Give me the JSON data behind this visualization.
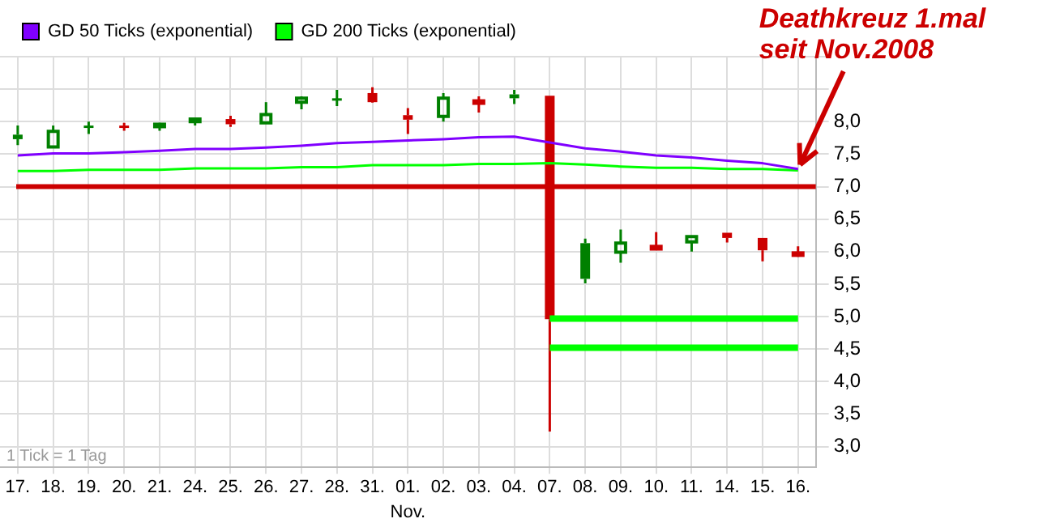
{
  "chart_data": {
    "type": "candlestick",
    "xlabel": "Nov.",
    "categories": [
      "17.",
      "18.",
      "19.",
      "20.",
      "21.",
      "24.",
      "25.",
      "26.",
      "27.",
      "28.",
      "31.",
      "01.",
      "02.",
      "03.",
      "04.",
      "07.",
      "08.",
      "09.",
      "10.",
      "11.",
      "14.",
      "15.",
      "16."
    ],
    "ohlc": [
      [
        7.8,
        7.94,
        7.64,
        7.73
      ],
      [
        7.61,
        7.94,
        7.61,
        7.85
      ],
      [
        7.94,
        8.0,
        7.81,
        7.94
      ],
      [
        7.94,
        7.98,
        7.86,
        7.94
      ],
      [
        7.94,
        7.98,
        7.86,
        7.96
      ],
      [
        8.0,
        8.05,
        7.94,
        8.04
      ],
      [
        8.04,
        8.09,
        7.92,
        7.96
      ],
      [
        7.98,
        8.3,
        7.98,
        8.11
      ],
      [
        8.3,
        8.39,
        8.19,
        8.36
      ],
      [
        8.36,
        8.49,
        8.24,
        8.36
      ],
      [
        8.44,
        8.53,
        8.29,
        8.3
      ],
      [
        8.1,
        8.21,
        7.81,
        8.03
      ],
      [
        8.08,
        8.44,
        8.0,
        8.36
      ],
      [
        8.29,
        8.39,
        8.14,
        8.32
      ],
      [
        8.42,
        8.49,
        8.27,
        8.36
      ],
      [
        8.4,
        8.4,
        3.23,
        4.96
      ],
      [
        6.13,
        6.2,
        5.51,
        5.58
      ],
      [
        5.99,
        6.34,
        5.83,
        6.13
      ],
      [
        6.04,
        6.3,
        6.04,
        6.08
      ],
      [
        6.15,
        6.23,
        6.0,
        6.23
      ],
      [
        6.29,
        6.29,
        6.14,
        6.21
      ],
      [
        6.21,
        6.21,
        5.85,
        6.02
      ],
      [
        5.95,
        6.08,
        5.92,
        5.98
      ]
    ],
    "colors": [
      "#008000",
      "#008000",
      "#008000",
      "#cc0000",
      "#008000",
      "#008000",
      "#cc0000",
      "#008000",
      "#008000",
      "#008000",
      "#cc0000",
      "#cc0000",
      "#008000",
      "#cc0000",
      "#008000",
      "#cc0000",
      "#008000",
      "#008000",
      "#cc0000",
      "#008000",
      "#cc0000",
      "#cc0000",
      "#cc0000"
    ],
    "series": [
      {
        "type": "line",
        "name": "GD 50 Ticks (exponential)",
        "color": "#8000ff",
        "values": [
          7.48,
          7.51,
          7.51,
          7.53,
          7.55,
          7.58,
          7.58,
          7.6,
          7.63,
          7.67,
          7.69,
          7.71,
          7.73,
          7.76,
          7.77,
          7.68,
          7.59,
          7.54,
          7.48,
          7.45,
          7.4,
          7.36,
          7.27
        ]
      },
      {
        "type": "line",
        "name": "GD 200 Ticks (exponential)",
        "color": "#00ff00",
        "values": [
          7.24,
          7.24,
          7.26,
          7.26,
          7.26,
          7.28,
          7.28,
          7.28,
          7.3,
          7.3,
          7.33,
          7.33,
          7.33,
          7.35,
          7.35,
          7.36,
          7.34,
          7.31,
          7.29,
          7.29,
          7.27,
          7.27,
          7.25
        ]
      },
      {
        "type": "line",
        "color": "#00ff00",
        "values": [
          null,
          null,
          null,
          null,
          null,
          null,
          null,
          null,
          null,
          null,
          null,
          null,
          null,
          null,
          null,
          4.97,
          4.97,
          4.97,
          4.97,
          4.97,
          4.97,
          4.97,
          4.97
        ]
      },
      {
        "type": "line",
        "color": "#00ff00",
        "values": [
          null,
          null,
          null,
          null,
          null,
          null,
          null,
          null,
          null,
          null,
          null,
          null,
          null,
          null,
          null,
          4.52,
          4.52,
          4.52,
          4.52,
          4.52,
          4.52,
          4.52,
          4.52
        ]
      }
    ],
    "ylim": [
      2.68,
      9.0
    ],
    "yticks": [
      {
        "value": 3,
        "label": "3,0"
      },
      {
        "value": 3.5,
        "label": "3,5"
      },
      {
        "value": 4,
        "label": "4,0"
      },
      {
        "value": 4.5,
        "label": "4,5"
      },
      {
        "value": 5,
        "label": "5,0"
      },
      {
        "value": 5.5,
        "label": "5,5"
      },
      {
        "value": 6,
        "label": "6,0"
      },
      {
        "value": 6.5,
        "label": "6,5"
      },
      {
        "value": 7,
        "label": "7,0"
      },
      {
        "value": 7.5,
        "label": "7,5"
      },
      {
        "value": 8,
        "label": "8,0"
      },
      {
        "value": 8.5,
        "label": null
      },
      {
        "value": 9,
        "label": null
      }
    ],
    "ref_lines": [
      {
        "axis": "y",
        "value": 7.0,
        "color": "#cc0000"
      }
    ],
    "annotations": [
      {
        "text": "Deathkreuz 1.mal\nseit Nov.2008",
        "x": "16.",
        "y": 7.27
      },
      "1 Tick = 1 Tag"
    ],
    "grid": true,
    "legend": "top left",
    "marker": "none",
    "line_style": "solid"
  }
}
